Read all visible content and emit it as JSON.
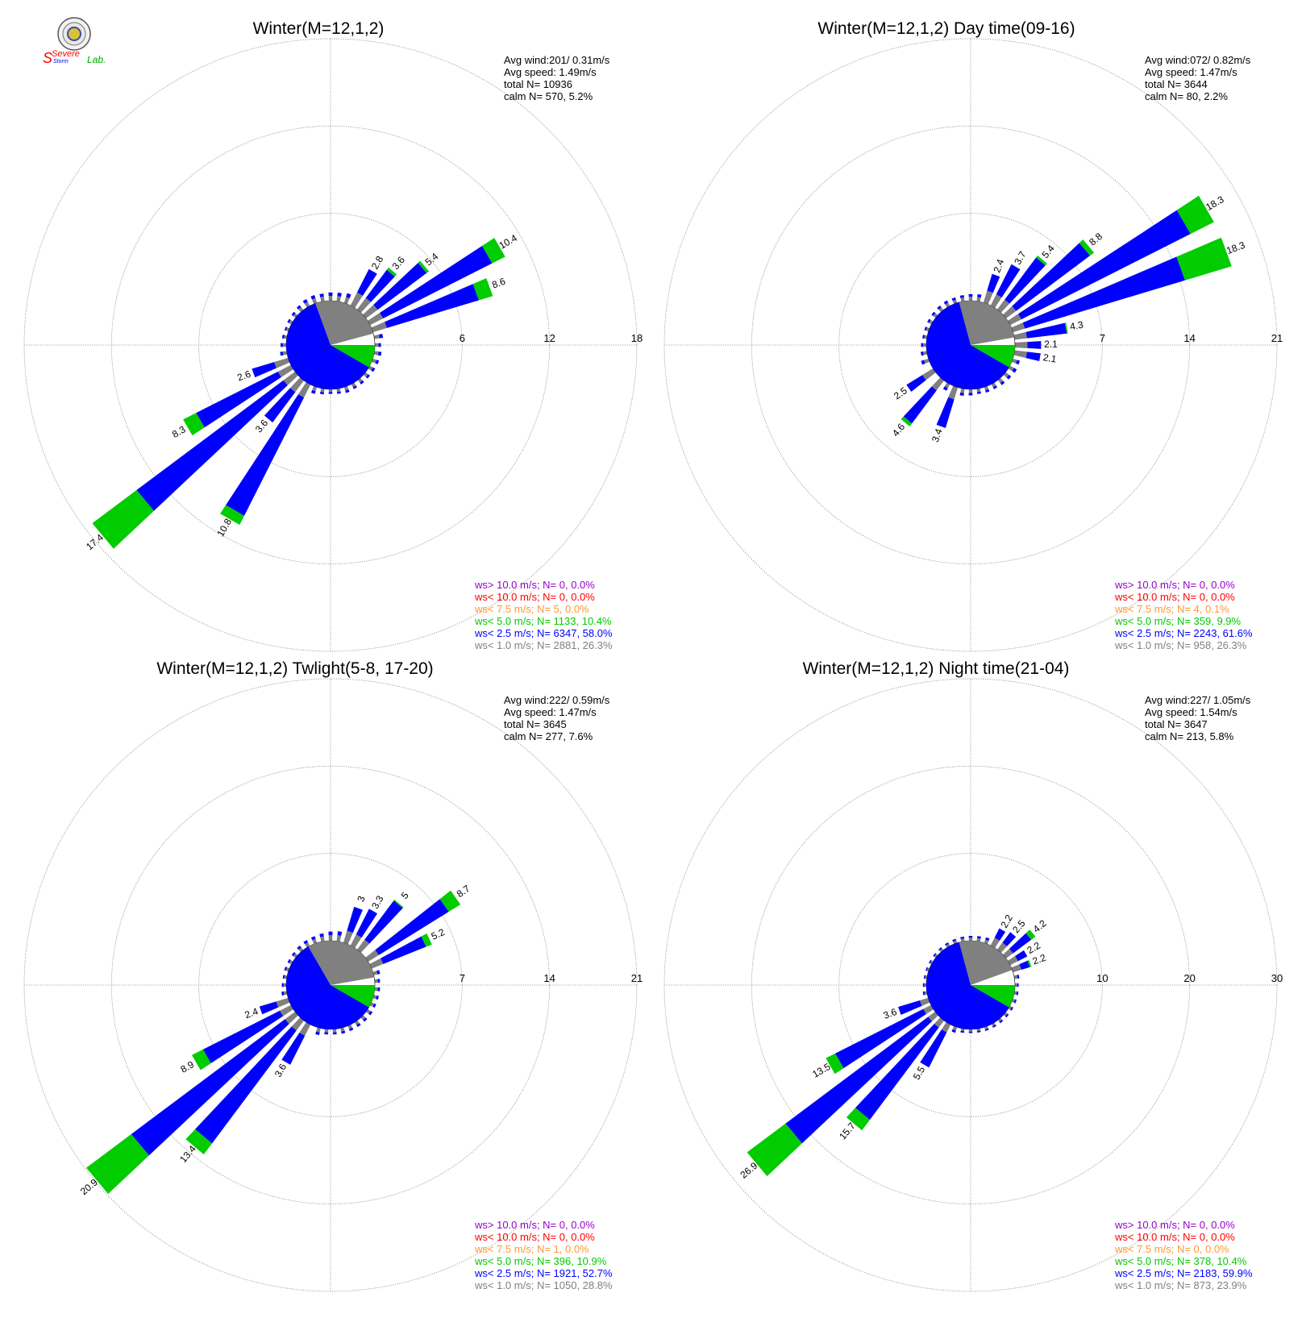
{
  "logo": {
    "top_text": "Severe",
    "mid_text": "Storm",
    "lab_text": "Lab."
  },
  "colors": {
    "calm": "#808080",
    "lt1": "#808080",
    "lt25": "#0000ff",
    "lt5": "#00cc00",
    "lt75": "#ff9933",
    "lt10": "#ff0000",
    "gt10": "#9900cc",
    "grid": "#888888"
  },
  "chart_data": [
    {
      "type": "windrose",
      "title": "Winter(M=12,1,2)",
      "rings": [
        "6",
        "12",
        "18"
      ],
      "rmax": 18,
      "stats": [
        "Avg wind:201/ 0.31m/s",
        "Avg speed: 1.49m/s",
        "total N=      10936",
        "calm N=    570,   5.2%"
      ],
      "legend": [
        "ws> 10.0 m/s; N=     0,  0.0%",
        "ws< 10.0 m/s; N=     0,  0.0%",
        "ws<  7.5 m/s; N=     5,  0.0%",
        "ws<  5.0 m/s; N=  1133, 10.4%",
        "ws<  2.5 m/s; N=  6347, 58.0%",
        "ws<  1.0 m/s; N=  2881, 26.3%"
      ],
      "pie": {
        "gray_start": 75,
        "gray_end": 340,
        "blue_end": 120
      },
      "bars": [
        {
          "dir": 30,
          "value": 2.8,
          "segments": [
            1.0,
            1.8,
            0
          ]
        },
        {
          "dir": 40,
          "value": 3.6,
          "segments": [
            1.0,
            2.4,
            0.2
          ]
        },
        {
          "dir": 50,
          "value": 5.4,
          "segments": [
            1.0,
            4.2,
            0.2
          ]
        },
        {
          "dir": 60,
          "value": 10.4,
          "segments": [
            1.0,
            8.4,
            1.0
          ]
        },
        {
          "dir": 70,
          "value": 8.6,
          "segments": [
            1.0,
            6.6,
            1.0
          ]
        },
        {
          "dir": 210,
          "value": 10.8,
          "segments": [
            1.0,
            9.1,
            0.7
          ]
        },
        {
          "dir": 220,
          "value": 3.6,
          "segments": [
            1.0,
            2.6,
            0
          ]
        },
        {
          "dir": 230,
          "value": 17.4,
          "segments": [
            1.0,
            12.6,
            3.8
          ]
        },
        {
          "dir": 240,
          "value": 8.3,
          "segments": [
            1.0,
            6.3,
            1.0
          ]
        },
        {
          "dir": 250,
          "value": 2.6,
          "segments": [
            1.0,
            1.6,
            0
          ]
        }
      ],
      "small_bars": [
        {
          "dir": 80,
          "value": 1.7
        },
        {
          "dir": 90,
          "value": 1.2
        },
        {
          "dir": 100,
          "value": 1.4
        },
        {
          "dir": 110,
          "value": 1.3
        },
        {
          "dir": 120,
          "value": 1.2
        },
        {
          "dir": 130,
          "value": 1.1
        },
        {
          "dir": 140,
          "value": 1.1
        },
        {
          "dir": 150,
          "value": 1.1
        },
        {
          "dir": 160,
          "value": 1.2
        },
        {
          "dir": 170,
          "value": 1.0
        },
        {
          "dir": 180,
          "value": 0.9
        },
        {
          "dir": 190,
          "value": 1.1
        },
        {
          "dir": 200,
          "value": 1.4
        },
        {
          "dir": 260,
          "value": 1.3
        },
        {
          "dir": 270,
          "value": 1.1
        },
        {
          "dir": 280,
          "value": 0.9
        },
        {
          "dir": 290,
          "value": 0.8
        },
        {
          "dir": 300,
          "value": 0.9
        },
        {
          "dir": 310,
          "value": 1.0
        },
        {
          "dir": 320,
          "value": 1.2
        },
        {
          "dir": 330,
          "value": 1.5
        },
        {
          "dir": 340,
          "value": 1.6
        },
        {
          "dir": 350,
          "value": 1.5
        },
        {
          "dir": 0,
          "value": 1.6
        },
        {
          "dir": 10,
          "value": 1.7
        },
        {
          "dir": 20,
          "value": 2.0
        }
      ]
    },
    {
      "type": "windrose",
      "title": "Winter(M=12,1,2) Day time(09-16)",
      "rings": [
        "7",
        "14",
        "21"
      ],
      "rmax": 21,
      "stats": [
        "Avg wind:072/ 0.82m/s",
        "Avg speed: 1.47m/s",
        "total N=        3644",
        "calm N=     80,   2.2%"
      ],
      "legend": [
        "ws> 10.0 m/s; N=     0,  0.0%",
        "ws< 10.0 m/s; N=     0,  0.0%",
        "ws<  7.5 m/s; N=     4,  0.1%",
        "ws<  5.0 m/s; N=   359,  9.9%",
        "ws<  2.5 m/s; N=  2243, 61.6%",
        "ws<  1.0 m/s; N=   958, 26.3%"
      ],
      "pie": {
        "gray_start": 80,
        "gray_end": 345,
        "blue_end": 120
      },
      "bars": [
        {
          "dir": 20,
          "value": 2.4,
          "segments": [
            1.0,
            1.4,
            0
          ]
        },
        {
          "dir": 30,
          "value": 3.7,
          "segments": [
            1.0,
            2.7,
            0
          ]
        },
        {
          "dir": 40,
          "value": 5.4,
          "segments": [
            1.0,
            4.2,
            0.2
          ]
        },
        {
          "dir": 50,
          "value": 8.8,
          "segments": [
            1.0,
            7.4,
            0.4
          ]
        },
        {
          "dir": 60,
          "value": 18.3,
          "segments": [
            1.0,
            15.2,
            2.1
          ]
        },
        {
          "dir": 70,
          "value": 18.3,
          "segments": [
            1.0,
            13.4,
            3.9
          ]
        },
        {
          "dir": 80,
          "value": 4.3,
          "segments": [
            1.0,
            3.2,
            0.1
          ]
        },
        {
          "dir": 90,
          "value": 2.1,
          "segments": [
            1.0,
            1.1,
            0
          ]
        },
        {
          "dir": 100,
          "value": 2.1,
          "segments": [
            1.0,
            1.1,
            0
          ]
        },
        {
          "dir": 200,
          "value": 3.4,
          "segments": [
            1.0,
            2.4,
            0
          ]
        },
        {
          "dir": 220,
          "value": 4.6,
          "segments": [
            1.0,
            3.3,
            0.3
          ]
        },
        {
          "dir": 235,
          "value": 2.5,
          "segments": [
            1.0,
            1.5,
            0
          ]
        }
      ],
      "small_bars": [
        {
          "dir": 110,
          "value": 1.7
        },
        {
          "dir": 120,
          "value": 1.8
        },
        {
          "dir": 130,
          "value": 1.6
        },
        {
          "dir": 140,
          "value": 1.5
        },
        {
          "dir": 150,
          "value": 1.3
        },
        {
          "dir": 160,
          "value": 1.3
        },
        {
          "dir": 170,
          "value": 1.2
        },
        {
          "dir": 180,
          "value": 1.4
        },
        {
          "dir": 190,
          "value": 1.6
        },
        {
          "dir": 210,
          "value": 1.7
        },
        {
          "dir": 250,
          "value": 1.8
        },
        {
          "dir": 260,
          "value": 1.4
        },
        {
          "dir": 270,
          "value": 1.2
        },
        {
          "dir": 280,
          "value": 1.0
        },
        {
          "dir": 290,
          "value": 1.0
        },
        {
          "dir": 300,
          "value": 1.1
        },
        {
          "dir": 310,
          "value": 1.2
        },
        {
          "dir": 320,
          "value": 1.3
        },
        {
          "dir": 330,
          "value": 1.4
        },
        {
          "dir": 340,
          "value": 1.3
        },
        {
          "dir": 350,
          "value": 1.4
        },
        {
          "dir": 0,
          "value": 1.5
        },
        {
          "dir": 10,
          "value": 1.6
        }
      ]
    },
    {
      "type": "windrose",
      "title": "Winter(M=12,1,2) Twlight(5-8, 17-20)",
      "rings": [
        "7",
        "14",
        "21"
      ],
      "rmax": 21,
      "stats": [
        "Avg wind:222/ 0.59m/s",
        "Avg speed: 1.47m/s",
        "total N=        3645",
        "calm N=    277,   7.6%"
      ],
      "legend": [
        "ws> 10.0 m/s; N=     0,  0.0%",
        "ws< 10.0 m/s; N=     0,  0.0%",
        "ws<  7.5 m/s; N=     1,  0.0%",
        "ws<  5.0 m/s; N=   396, 10.9%",
        "ws<  2.5 m/s; N=  1921, 52.7%",
        "ws<  1.0 m/s; N=  1050, 28.8%"
      ],
      "pie": {
        "gray_start": 80,
        "gray_end": 330,
        "blue_end": 120
      },
      "bars": [
        {
          "dir": 20,
          "value": 3.0,
          "segments": [
            1.0,
            2.0,
            0
          ]
        },
        {
          "dir": 30,
          "value": 3.3,
          "segments": [
            1.0,
            2.3,
            0
          ]
        },
        {
          "dir": 40,
          "value": 5.0,
          "segments": [
            1.0,
            3.9,
            0.1
          ]
        },
        {
          "dir": 55,
          "value": 8.7,
          "segments": [
            1.0,
            6.6,
            1.1
          ]
        },
        {
          "dir": 65,
          "value": 5.2,
          "segments": [
            1.0,
            3.7,
            0.5
          ]
        },
        {
          "dir": 210,
          "value": 3.6,
          "segments": [
            1.0,
            2.6,
            0
          ]
        },
        {
          "dir": 220,
          "value": 13.4,
          "segments": [
            1.0,
            11.3,
            1.1
          ]
        },
        {
          "dir": 230,
          "value": 20.9,
          "segments": [
            1.0,
            15.4,
            4.5
          ]
        },
        {
          "dir": 240,
          "value": 8.9,
          "segments": [
            1.0,
            6.9,
            1.0
          ]
        },
        {
          "dir": 250,
          "value": 2.4,
          "segments": [
            1.0,
            1.4,
            0
          ]
        }
      ],
      "small_bars": [
        {
          "dir": 75,
          "value": 1.5
        },
        {
          "dir": 85,
          "value": 1.2
        },
        {
          "dir": 95,
          "value": 1.2
        },
        {
          "dir": 105,
          "value": 1.2
        },
        {
          "dir": 115,
          "value": 1.2
        },
        {
          "dir": 125,
          "value": 1.3
        },
        {
          "dir": 135,
          "value": 1.3
        },
        {
          "dir": 145,
          "value": 1.3
        },
        {
          "dir": 155,
          "value": 1.3
        },
        {
          "dir": 165,
          "value": 1.3
        },
        {
          "dir": 175,
          "value": 1.2
        },
        {
          "dir": 185,
          "value": 1.2
        },
        {
          "dir": 195,
          "value": 1.6
        },
        {
          "dir": 260,
          "value": 1.2
        },
        {
          "dir": 270,
          "value": 1.0
        },
        {
          "dir": 280,
          "value": 0.9
        },
        {
          "dir": 290,
          "value": 1.0
        },
        {
          "dir": 300,
          "value": 1.0
        },
        {
          "dir": 310,
          "value": 1.1
        },
        {
          "dir": 320,
          "value": 1.3
        },
        {
          "dir": 330,
          "value": 1.5
        },
        {
          "dir": 340,
          "value": 1.6
        },
        {
          "dir": 350,
          "value": 1.8
        },
        {
          "dir": 0,
          "value": 2.1
        },
        {
          "dir": 10,
          "value": 2.3
        }
      ]
    },
    {
      "type": "windrose",
      "title": "Winter(M=12,1,2) Night time(21-04)",
      "rings": [
        "10",
        "20",
        "30"
      ],
      "rmax": 30,
      "stats": [
        "Avg wind:227/ 1.05m/s",
        "Avg speed: 1.54m/s",
        "total N=        3647",
        "calm N=    213,   5.8%"
      ],
      "legend": [
        "ws> 10.0 m/s; N=     0,  0.0%",
        "ws< 10.0 m/s; N=     0,  0.0%",
        "ws<  7.5 m/s; N=     0,  0.0%",
        "ws<  5.0 m/s; N=   378, 10.4%",
        "ws<  2.5 m/s; N=  2183, 59.9%",
        "ws<  1.0 m/s; N=   873, 23.9%"
      ],
      "pie": {
        "gray_start": 70,
        "gray_end": 345,
        "blue_end": 120
      },
      "bars": [
        {
          "dir": 30,
          "value": 2.2,
          "segments": [
            1.0,
            1.2,
            0
          ]
        },
        {
          "dir": 40,
          "value": 2.5,
          "segments": [
            1.0,
            1.5,
            0
          ]
        },
        {
          "dir": 50,
          "value": 4.2,
          "segments": [
            1.0,
            2.6,
            0.6
          ]
        },
        {
          "dir": 60,
          "value": 2.2,
          "segments": [
            1.0,
            1.2,
            0
          ]
        },
        {
          "dir": 70,
          "value": 2.2,
          "segments": [
            1.0,
            1.0,
            0.2
          ]
        },
        {
          "dir": 210,
          "value": 5.5,
          "segments": [
            1.0,
            4.5,
            0
          ]
        },
        {
          "dir": 220,
          "value": 15.7,
          "segments": [
            1.0,
            13.2,
            1.5
          ]
        },
        {
          "dir": 230,
          "value": 26.9,
          "segments": [
            1.0,
            20.4,
            5.5
          ]
        },
        {
          "dir": 240,
          "value": 13.5,
          "segments": [
            1.0,
            11.3,
            1.2
          ]
        },
        {
          "dir": 250,
          "value": 3.6,
          "segments": [
            1.0,
            2.6,
            0
          ]
        }
      ],
      "small_bars": [
        {
          "dir": 80,
          "value": 1.6
        },
        {
          "dir": 90,
          "value": 1.2
        },
        {
          "dir": 100,
          "value": 1.3
        },
        {
          "dir": 110,
          "value": 1.3
        },
        {
          "dir": 120,
          "value": 1.3
        },
        {
          "dir": 130,
          "value": 1.3
        },
        {
          "dir": 140,
          "value": 1.3
        },
        {
          "dir": 150,
          "value": 1.3
        },
        {
          "dir": 160,
          "value": 1.3
        },
        {
          "dir": 170,
          "value": 1.2
        },
        {
          "dir": 180,
          "value": 1.2
        },
        {
          "dir": 190,
          "value": 1.3
        },
        {
          "dir": 200,
          "value": 1.9
        },
        {
          "dir": 260,
          "value": 1.3
        },
        {
          "dir": 270,
          "value": 1.1
        },
        {
          "dir": 280,
          "value": 1.0
        },
        {
          "dir": 290,
          "value": 1.0
        },
        {
          "dir": 300,
          "value": 1.0
        },
        {
          "dir": 310,
          "value": 1.1
        },
        {
          "dir": 320,
          "value": 1.2
        },
        {
          "dir": 330,
          "value": 1.3
        },
        {
          "dir": 340,
          "value": 1.4
        },
        {
          "dir": 350,
          "value": 1.5
        },
        {
          "dir": 0,
          "value": 1.6
        },
        {
          "dir": 10,
          "value": 1.7
        },
        {
          "dir": 20,
          "value": 1.9
        }
      ]
    }
  ]
}
